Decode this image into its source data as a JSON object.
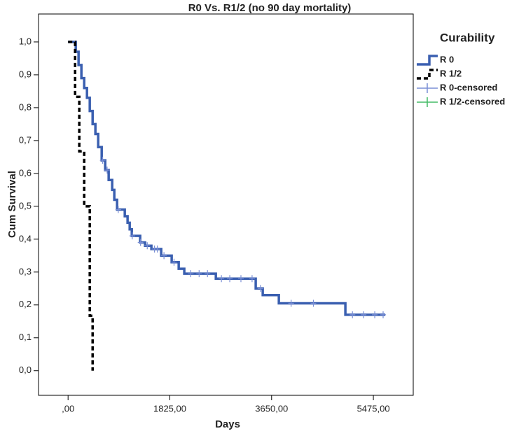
{
  "chart_data": {
    "type": "step",
    "title": "R0 Vs. R1/2 (no 90 day mortality)",
    "x_label": "Days",
    "y_label": "Cum Survival",
    "legend_title": "Curability",
    "legend": "right",
    "xlim": [
      -530,
      6190
    ],
    "ylim": [
      -0.075,
      1.085
    ],
    "xticks": [
      {
        "value": 0,
        "label": ",00"
      },
      {
        "value": 1825,
        "label": "1825,00"
      },
      {
        "value": 3650,
        "label": "3650,00"
      },
      {
        "value": 5475,
        "label": "5475,00"
      }
    ],
    "yticks": [
      {
        "value": 0,
        "label": "0,0"
      },
      {
        "value": 0.1,
        "label": "0,1"
      },
      {
        "value": 0.2,
        "label": "0,2"
      },
      {
        "value": 0.3,
        "label": "0,3"
      },
      {
        "value": 0.4,
        "label": "0,4"
      },
      {
        "value": 0.5,
        "label": "0,5"
      },
      {
        "value": 0.6,
        "label": "0,6"
      },
      {
        "value": 0.7,
        "label": "0,7"
      },
      {
        "value": 0.8,
        "label": "0,8"
      },
      {
        "value": 0.9,
        "label": "0,9"
      },
      {
        "value": 1.0,
        "label": "1,0"
      }
    ],
    "series": [
      {
        "name": "R 0",
        "color": "#3a5fb0",
        "style": "solid",
        "x": [
          0,
          138,
          188,
          239,
          289,
          339,
          389,
          440,
          490,
          540,
          603,
          666,
          728,
          791,
          829,
          879,
          1017,
          1067,
          1105,
          1143,
          1293,
          1381,
          1494,
          1670,
          1858,
          1984,
          2084,
          2650,
          3365,
          3491,
          3780,
          4973,
          5688
        ],
        "values": [
          1.0,
          0.97,
          0.93,
          0.89,
          0.86,
          0.83,
          0.79,
          0.75,
          0.72,
          0.68,
          0.64,
          0.61,
          0.58,
          0.55,
          0.52,
          0.49,
          0.47,
          0.45,
          0.43,
          0.41,
          0.39,
          0.38,
          0.37,
          0.35,
          0.33,
          0.31,
          0.295,
          0.28,
          0.25,
          0.23,
          0.205,
          0.17,
          0.17
        ]
      },
      {
        "name": "R 1/2",
        "color": "#000000",
        "style": "dashed",
        "x": [
          0,
          126,
          201,
          289,
          389,
          440
        ],
        "values": [
          1.0,
          0.833,
          0.667,
          0.5,
          0.167,
          0.0
        ]
      },
      {
        "name": "R 0-censored",
        "color": "#7a8fd6",
        "style": "censor",
        "x": [
          620,
          700,
          900,
          1150,
          1300,
          1420,
          1550,
          1600,
          1720,
          1900,
          2200,
          2350,
          2500,
          2750,
          2900,
          3100,
          3300,
          3450,
          4000,
          4400,
          5100,
          5300,
          5500,
          5650
        ],
        "values": [
          0.64,
          0.61,
          0.49,
          0.41,
          0.39,
          0.38,
          0.37,
          0.37,
          0.35,
          0.33,
          0.295,
          0.295,
          0.295,
          0.28,
          0.28,
          0.28,
          0.28,
          0.25,
          0.205,
          0.205,
          0.17,
          0.17,
          0.17,
          0.17
        ]
      },
      {
        "name": "R 1/2-censored",
        "color": "#44bb66",
        "style": "censor",
        "x": [],
        "values": []
      }
    ]
  }
}
